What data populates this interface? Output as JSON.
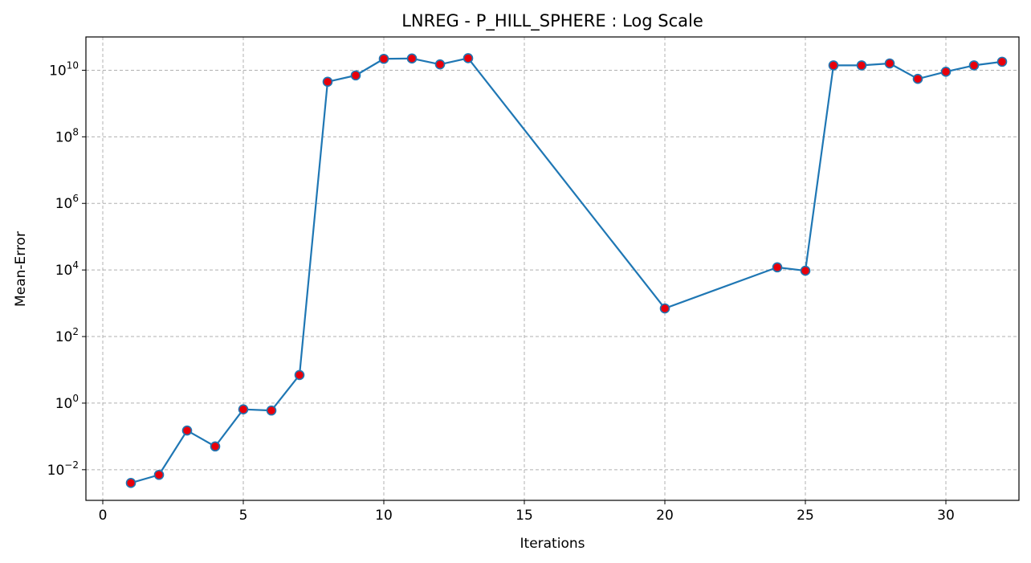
{
  "chart_data": {
    "type": "line",
    "title": "LNREG - P_HILL_SPHERE : Log Scale",
    "xlabel": "Iterations",
    "ylabel": "Mean-Error",
    "yscale": "log",
    "xlim": [
      -0.6,
      32.6
    ],
    "ylim": [
      0.0012,
      100000000000
    ],
    "grid": true,
    "line_color": "#1f77b4",
    "marker_color": "#e8000b",
    "xticks": [
      0,
      5,
      10,
      15,
      20,
      25,
      30
    ],
    "xtick_labels": [
      "0",
      "5",
      "10",
      "15",
      "20",
      "25",
      "30"
    ],
    "yticks": [
      0.01,
      1,
      100,
      10000,
      1000000,
      100000000,
      10000000000
    ],
    "ytick_labels": [
      {
        "base": "10",
        "exp": "−2"
      },
      {
        "base": "10",
        "exp": "0"
      },
      {
        "base": "10",
        "exp": "2"
      },
      {
        "base": "10",
        "exp": "4"
      },
      {
        "base": "10",
        "exp": "6"
      },
      {
        "base": "10",
        "exp": "8"
      },
      {
        "base": "10",
        "exp": "10"
      }
    ],
    "series": [
      {
        "x": [
          1,
          2,
          3,
          4,
          5,
          6,
          7,
          8,
          9,
          10,
          11,
          12,
          13,
          20,
          24,
          25,
          26,
          27,
          28,
          29,
          30,
          31,
          32
        ],
        "y": [
          0.004,
          0.007,
          0.15,
          0.05,
          0.65,
          0.6,
          7,
          4500000000,
          7000000000,
          22000000000,
          22500000000,
          15000000000,
          23000000000,
          700,
          12000,
          9500,
          14000000000,
          14000000000,
          16000000000,
          5500000000,
          9000000000,
          14000000000,
          18000000000
        ]
      }
    ]
  }
}
